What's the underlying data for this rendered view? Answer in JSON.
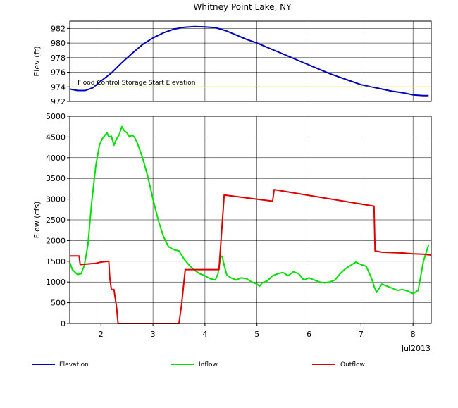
{
  "chart_data": [
    {
      "type": "line",
      "title": "Whitney Point Lake, NY",
      "ylabel": "Elev (ft)",
      "xlim": [
        1.4,
        8.35
      ],
      "ylim": [
        972,
        983
      ],
      "yticks": [
        972,
        974,
        976,
        978,
        980,
        982
      ],
      "grid": true,
      "series": [
        {
          "name": "Elevation",
          "color": "#0000bb",
          "x": [
            1.4,
            1.55,
            1.7,
            1.85,
            2.0,
            2.2,
            2.4,
            2.6,
            2.8,
            3.0,
            3.2,
            3.4,
            3.6,
            3.8,
            4.0,
            4.2,
            4.4,
            4.6,
            4.8,
            5.0,
            5.2,
            5.4,
            5.6,
            5.8,
            6.0,
            6.2,
            6.4,
            6.6,
            6.8,
            7.0,
            7.2,
            7.4,
            7.6,
            7.8,
            8.0,
            8.2,
            8.3
          ],
          "y": [
            973.7,
            973.5,
            973.5,
            973.9,
            974.8,
            975.9,
            977.3,
            978.6,
            979.8,
            980.7,
            981.4,
            981.9,
            982.15,
            982.25,
            982.2,
            982.1,
            981.7,
            981.1,
            980.5,
            980.0,
            979.4,
            978.8,
            978.2,
            977.6,
            977.0,
            976.4,
            975.8,
            975.3,
            974.8,
            974.3,
            974.0,
            973.7,
            973.4,
            973.2,
            972.9,
            972.8,
            972.8
          ]
        },
        {
          "name": "Flood Control Storage Start Elevation",
          "color": "#e8e800",
          "x": [
            1.4,
            8.35
          ],
          "y": [
            974.0,
            974.0
          ]
        }
      ],
      "annotations": [
        {
          "text": "Flood Control Storage Start Elevation",
          "x": 1.55,
          "y": 974.3
        }
      ]
    },
    {
      "type": "line",
      "title": "",
      "ylabel": "Flow (cfs)",
      "xlim": [
        1.4,
        8.35
      ],
      "ylim": [
        0,
        5000
      ],
      "yticks": [
        0,
        500,
        1000,
        1500,
        2000,
        2500,
        3000,
        3500,
        4000,
        4500,
        5000
      ],
      "xticks": [
        2,
        3,
        4,
        5,
        6,
        7,
        8
      ],
      "xlabel_extra": "Jul2013",
      "grid": true,
      "series": [
        {
          "name": "Inflow",
          "color": "#00e000",
          "x": [
            1.4,
            1.45,
            1.55,
            1.62,
            1.68,
            1.75,
            1.82,
            1.9,
            1.97,
            2.02,
            2.08,
            2.12,
            2.15,
            2.2,
            2.25,
            2.3,
            2.35,
            2.4,
            2.45,
            2.5,
            2.55,
            2.6,
            2.65,
            2.7,
            2.8,
            2.9,
            3.0,
            3.1,
            3.2,
            3.3,
            3.4,
            3.5,
            3.6,
            3.7,
            3.8,
            3.9,
            4.0,
            4.1,
            4.2,
            4.25,
            4.3,
            4.33,
            4.37,
            4.42,
            4.5,
            4.6,
            4.7,
            4.8,
            4.9,
            5.0,
            5.05,
            5.1,
            5.2,
            5.3,
            5.4,
            5.5,
            5.6,
            5.7,
            5.8,
            5.9,
            6.0,
            6.1,
            6.2,
            6.3,
            6.4,
            6.5,
            6.6,
            6.7,
            6.8,
            6.9,
            7.0,
            7.1,
            7.2,
            7.25,
            7.3,
            7.35,
            7.4,
            7.5,
            7.6,
            7.7,
            7.8,
            7.9,
            8.0,
            8.1,
            8.2,
            8.3
          ],
          "y": [
            1480,
            1300,
            1180,
            1200,
            1400,
            1900,
            2900,
            3800,
            4300,
            4450,
            4550,
            4600,
            4500,
            4520,
            4300,
            4450,
            4550,
            4750,
            4650,
            4600,
            4500,
            4550,
            4480,
            4350,
            4000,
            3550,
            3000,
            2500,
            2100,
            1850,
            1780,
            1750,
            1550,
            1400,
            1280,
            1200,
            1150,
            1080,
            1050,
            1200,
            1600,
            1620,
            1400,
            1170,
            1100,
            1050,
            1100,
            1080,
            1000,
            950,
            900,
            980,
            1030,
            1150,
            1200,
            1230,
            1150,
            1250,
            1200,
            1050,
            1100,
            1050,
            1000,
            980,
            1000,
            1050,
            1200,
            1320,
            1400,
            1480,
            1420,
            1380,
            1100,
            900,
            750,
            850,
            950,
            900,
            850,
            800,
            820,
            780,
            720,
            800,
            1500,
            1900
          ]
        },
        {
          "name": "Outflow",
          "color": "#dd0000",
          "x": [
            1.4,
            1.58,
            1.6,
            1.9,
            2.0,
            2.15,
            2.17,
            2.2,
            2.25,
            2.3,
            2.33,
            3.5,
            3.55,
            3.62,
            4.0,
            4.27,
            4.37,
            5.3,
            5.33,
            7.25,
            7.27,
            7.4,
            7.6,
            7.8,
            8.0,
            8.2,
            8.35
          ],
          "y": [
            1630,
            1630,
            1420,
            1450,
            1480,
            1500,
            1100,
            820,
            820,
            400,
            0,
            0,
            450,
            1300,
            1300,
            1300,
            3100,
            2950,
            3230,
            2830,
            1750,
            1720,
            1710,
            1700,
            1680,
            1670,
            1650
          ]
        }
      ]
    }
  ],
  "legend": [
    {
      "label": "Elevation",
      "color": "#0000bb"
    },
    {
      "label": "Inflow",
      "color": "#00e000"
    },
    {
      "label": "Outflow",
      "color": "#dd0000"
    }
  ]
}
